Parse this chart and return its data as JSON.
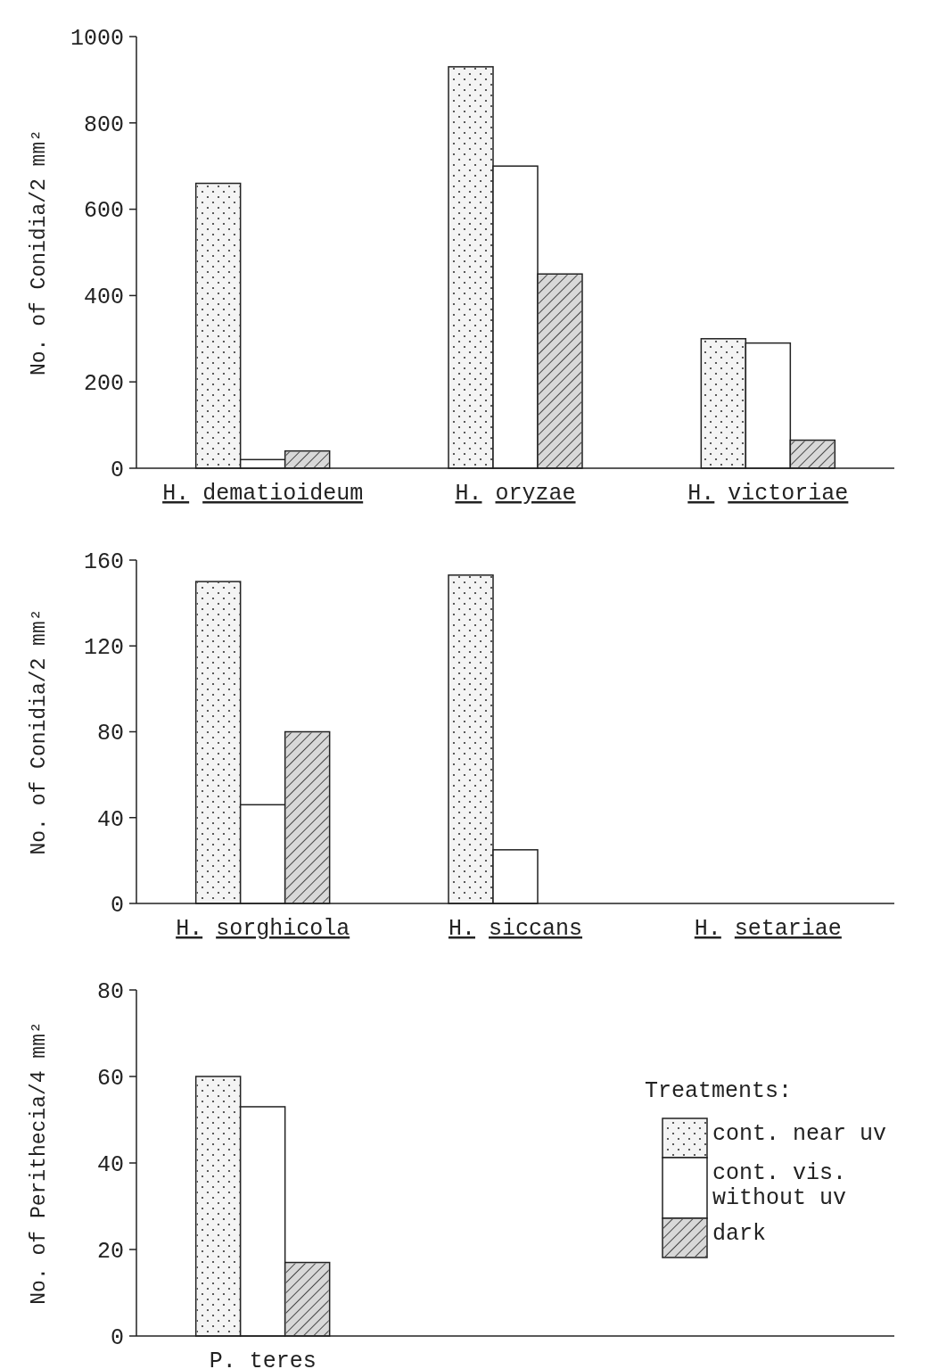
{
  "chart_data": [
    {
      "type": "bar",
      "ylabel": "No. of Conidia/2 mm²",
      "categories": [
        "H. dematioideum",
        "H. oryzae",
        "H. victoriae"
      ],
      "series": [
        {
          "color": "#f4f4f4",
          "values": [
            660,
            930,
            300
          ]
        },
        {
          "color": "#ffffff",
          "values": [
            20,
            700,
            290
          ]
        },
        {
          "color": "#d8d8d8",
          "values": [
            40,
            450,
            65
          ]
        }
      ],
      "ylim": [
        0,
        1000
      ],
      "yticks": [
        0,
        200,
        400,
        600,
        800,
        1000
      ],
      "grid": false,
      "legend": false
    },
    {
      "type": "bar",
      "ylabel": "No. of Conidia/2 mm²",
      "categories": [
        "H. sorghicola",
        "H. siccans",
        "H. setariae"
      ],
      "series": [
        {
          "color": "#f4f4f4",
          "values": [
            150,
            153,
            0
          ]
        },
        {
          "color": "#ffffff",
          "values": [
            46,
            25,
            0
          ]
        },
        {
          "color": "#d8d8d8",
          "values": [
            80,
            0,
            0
          ]
        }
      ],
      "ylim": [
        0,
        160
      ],
      "yticks": [
        0,
        40,
        80,
        120,
        160
      ],
      "grid": false,
      "legend": false
    },
    {
      "type": "bar",
      "ylabel": "No. of Perithecia/4 mm²",
      "categories": [
        "P. teres"
      ],
      "legend_title": "Treatments:",
      "series": [
        {
          "name": "cont. near uv",
          "color": "#f4f4f4",
          "values": [
            60
          ]
        },
        {
          "name": "cont. vis. without uv",
          "color": "#ffffff",
          "values": [
            53
          ]
        },
        {
          "name": "dark",
          "color": "#d8d8d8",
          "values": [
            17
          ]
        }
      ],
      "ylim": [
        0,
        80
      ],
      "yticks": [
        0,
        20,
        40,
        60,
        80
      ],
      "grid": false,
      "legend": "right"
    }
  ]
}
